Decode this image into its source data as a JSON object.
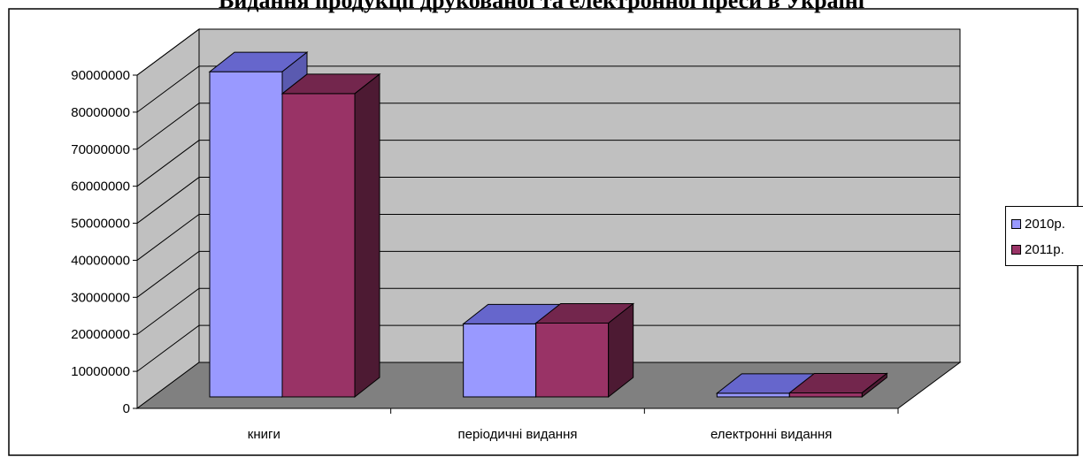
{
  "title": "Видання продукції друкованої та електронної преси в Україні",
  "chart_data": {
    "type": "bar",
    "categories": [
      "книги",
      "періодичні видання",
      "електронні видання"
    ],
    "series": [
      {
        "name": "2010р.",
        "values": [
          89000000,
          20000000,
          1000000
        ]
      },
      {
        "name": "2011р.",
        "values": [
          83000000,
          20200000,
          1100000
        ]
      }
    ],
    "ylim": [
      0,
      90000000
    ],
    "yticks": [
      "0",
      "10000000",
      "20000000",
      "30000000",
      "40000000",
      "50000000",
      "60000000",
      "70000000",
      "80000000",
      "90000000"
    ],
    "grid": true,
    "legend_position": "right",
    "colors": {
      "series_1_front": "#9999ff",
      "series_1_top": "#6666cc",
      "series_1_side": "#5a5ab0",
      "series_2_front": "#993366",
      "series_2_top": "#73264d",
      "series_2_side": "#4d1a33",
      "back_wall": "#c0c0c0",
      "side_wall": "#c0c0c0",
      "floor": "#808080"
    }
  }
}
